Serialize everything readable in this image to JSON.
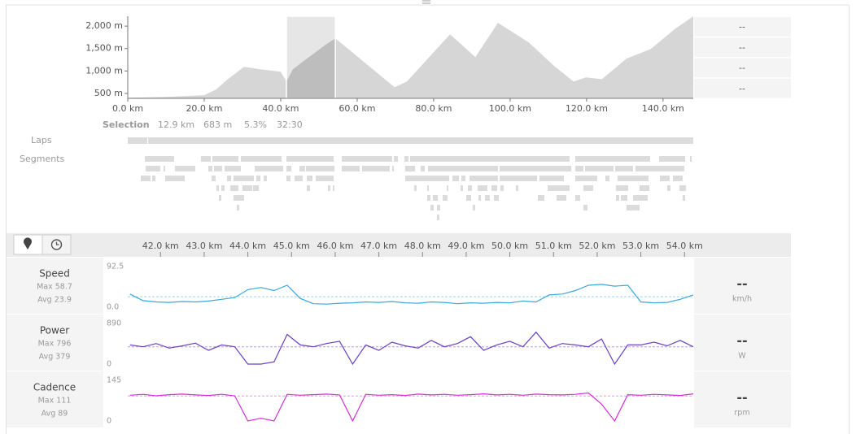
{
  "elevation": {
    "type": "area",
    "color": "#d6d6d6",
    "selected_color": "#bdbdbd",
    "xlim": [
      0,
      147.9
    ],
    "ylim": [
      390,
      2220
    ],
    "xticks": [
      {
        "value": 0,
        "label": "0.0 km"
      },
      {
        "value": 20,
        "label": "20.0 km"
      },
      {
        "value": 40,
        "label": "40.0 km"
      },
      {
        "value": 60,
        "label": "60.0 km"
      },
      {
        "value": 80,
        "label": "80.0 km"
      },
      {
        "value": 100,
        "label": "100.0 km"
      },
      {
        "value": 120,
        "label": "120.0 km"
      },
      {
        "value": 140,
        "label": "140.0 km"
      }
    ],
    "yticks": [
      {
        "value": 500,
        "label": "500 m"
      },
      {
        "value": 1000,
        "label": "1,000 m"
      },
      {
        "value": 1500,
        "label": "1,500 m"
      },
      {
        "value": 2000,
        "label": "2,000 m"
      }
    ],
    "x": [
      0,
      10,
      20,
      23,
      26.2,
      30.4,
      34.7,
      40,
      41.5,
      43.2,
      47.4,
      51.7,
      54.3,
      69.8,
      73,
      84.3,
      90.9,
      96.8,
      104.9,
      111.3,
      116.6,
      119.8,
      124,
      130.4,
      136.8,
      143.2,
      147.9
    ],
    "values": [
      400,
      420,
      460,
      582,
      818,
      1091,
      1036,
      982,
      764,
      1036,
      1309,
      1582,
      1727,
      636,
      764,
      1818,
      1309,
      2073,
      1636,
      1127,
      764,
      855,
      818,
      1273,
      1490,
      1945,
      2218
    ],
    "selection": [
      41.5,
      54.3
    ],
    "stats": [
      "--",
      "--",
      "--",
      "--"
    ]
  },
  "selection": {
    "label": "Selection",
    "distance": "12.9 km",
    "elevation_gain": "683 m",
    "grade": "5.3%",
    "time": "32:30"
  },
  "laps_label": "Laps",
  "segments_label": "Segments",
  "streams": {
    "type": "line",
    "xlim": [
      41.25,
      54.2
    ],
    "xticks": [
      {
        "value": 42,
        "label": "42.0 km"
      },
      {
        "value": 43,
        "label": "43.0 km"
      },
      {
        "value": 44,
        "label": "44.0 km"
      },
      {
        "value": 45,
        "label": "45.0 km"
      },
      {
        "value": 46,
        "label": "46.0 km"
      },
      {
        "value": 47,
        "label": "47.0 km"
      },
      {
        "value": 48,
        "label": "48.0 km"
      },
      {
        "value": 49,
        "label": "49.0 km"
      },
      {
        "value": 50,
        "label": "50.0 km"
      },
      {
        "value": 51,
        "label": "51.0 km"
      },
      {
        "value": 52,
        "label": "52.0 km"
      },
      {
        "value": 53,
        "label": "53.0 km"
      },
      {
        "value": 54,
        "label": "54.0 km"
      }
    ],
    "x": [
      41.3,
      41.6,
      41.9,
      42.2,
      42.5,
      42.8,
      43.1,
      43.4,
      43.7,
      44.0,
      44.3,
      44.6,
      44.9,
      45.2,
      45.5,
      45.8,
      46.1,
      46.4,
      46.7,
      47.0,
      47.3,
      47.6,
      47.9,
      48.2,
      48.5,
      48.8,
      49.1,
      49.4,
      49.7,
      50.0,
      50.3,
      50.6,
      50.9,
      51.2,
      51.5,
      51.8,
      52.1,
      52.4,
      52.7,
      53.0,
      53.3,
      53.6,
      53.9,
      54.2
    ],
    "series": [
      {
        "name": "Speed",
        "color": "#3aa8d8",
        "ylim": [
          0,
          92.5
        ],
        "yticks": [
          {
            "value": 0,
            "label": "0.0"
          },
          92.5
        ],
        "max_label": "Max 58.7",
        "avg_label": "Avg 23.9",
        "avg": 23.9,
        "current": "--",
        "unit": "km/h",
        "values": [
          30,
          15,
          12,
          11,
          13,
          12,
          14,
          18,
          22,
          40,
          45,
          38,
          50,
          20,
          8,
          7,
          9,
          10,
          12,
          11,
          13,
          10,
          9,
          12,
          11,
          8,
          10,
          9,
          11,
          10,
          14,
          12,
          28,
          30,
          38,
          50,
          52,
          48,
          50,
          12,
          10,
          11,
          18,
          28
        ]
      },
      {
        "name": "Power",
        "color": "#6a3fc0",
        "ylim": [
          0,
          890
        ],
        "yticks": [
          0,
          890
        ],
        "max_label": "Max 796",
        "avg_label": "Avg 379",
        "avg": 379,
        "current": "--",
        "unit": "W",
        "values": [
          420,
          380,
          450,
          350,
          400,
          460,
          300,
          420,
          380,
          0,
          0,
          50,
          650,
          420,
          380,
          450,
          500,
          0,
          420,
          300,
          480,
          400,
          350,
          520,
          380,
          450,
          600,
          300,
          420,
          500,
          380,
          700,
          350,
          450,
          420,
          380,
          550,
          0,
          420,
          420,
          480,
          400,
          520,
          380
        ]
      },
      {
        "name": "Cadence",
        "color": "#d62fd6",
        "ylim": [
          0,
          145
        ],
        "yticks": [
          0,
          145
        ],
        "max_label": "Max 111",
        "avg_label": "Avg 89",
        "avg": 89,
        "current": "--",
        "unit": "rpm",
        "values": [
          92,
          95,
          90,
          94,
          96,
          93,
          91,
          95,
          90,
          0,
          10,
          0,
          95,
          92,
          94,
          96,
          93,
          0,
          95,
          92,
          94,
          91,
          96,
          93,
          95,
          92,
          94,
          97,
          93,
          95,
          92,
          96,
          94,
          93,
          95,
          100,
          60,
          0,
          94,
          92,
          95,
          93,
          91,
          97
        ]
      }
    ]
  }
}
